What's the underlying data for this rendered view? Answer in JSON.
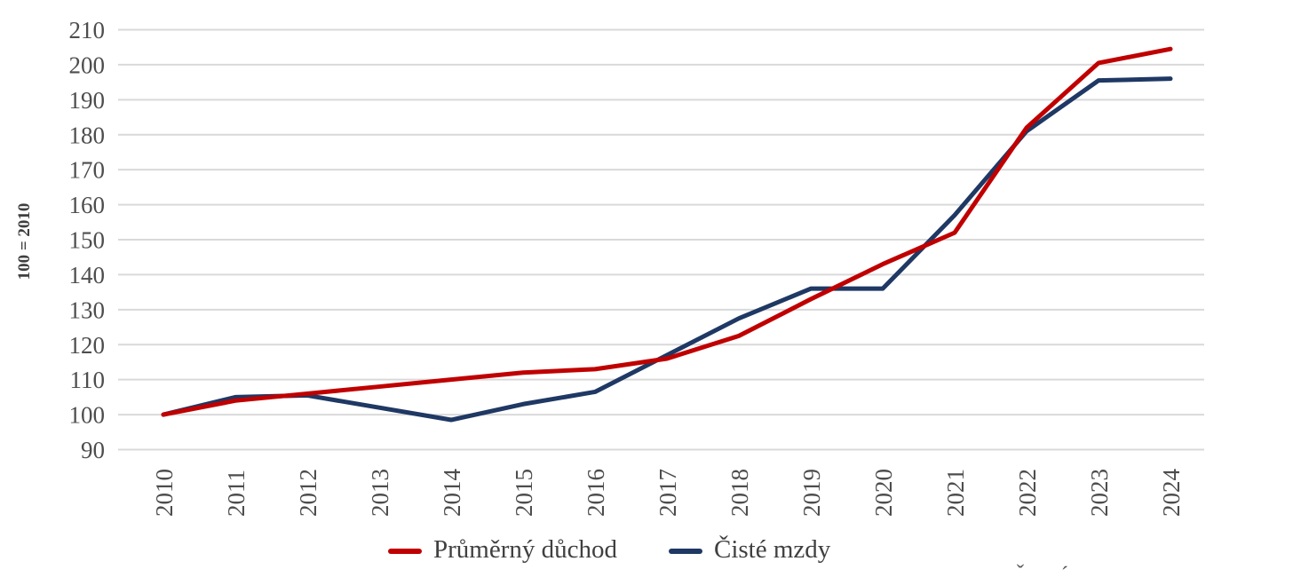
{
  "chart_data": {
    "type": "line",
    "title": "",
    "xlabel": "",
    "ylabel": "100 = 2010",
    "ylim": [
      90,
      210
    ],
    "ytick_step": 10,
    "grid": "horizontal",
    "legend_position": "bottom",
    "categories": [
      "2010",
      "2011",
      "2012",
      "2013",
      "2014",
      "2015",
      "2016",
      "2017",
      "2018",
      "2019",
      "2020",
      "2021",
      "2022",
      "2023",
      "2024"
    ],
    "series": [
      {
        "name": "Průměrný důchod",
        "color": "#C00000",
        "values": [
          100,
          104,
          106,
          108,
          110,
          112,
          113,
          116,
          122.5,
          133,
          143,
          152,
          182,
          200.5,
          204.5
        ]
      },
      {
        "name": "Čisté mzdy",
        "color": "#1F3864",
        "values": [
          100,
          105,
          105.5,
          102,
          98.5,
          103,
          106.5,
          117,
          127.5,
          136,
          136,
          157,
          181,
          195.5,
          196
        ]
      }
    ]
  },
  "colors": {
    "gridline": "#D9D9D9",
    "tick_text": "#4D4D4D",
    "legend_text": "#404040"
  },
  "cutoff_fragments": [
    "ˇ",
    "´"
  ]
}
